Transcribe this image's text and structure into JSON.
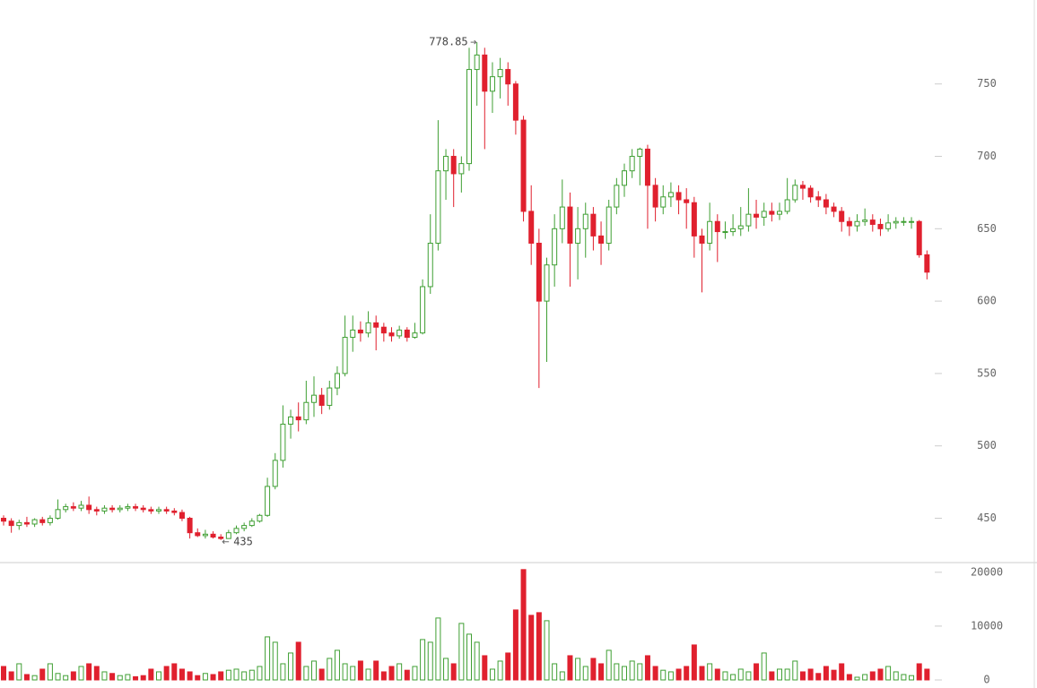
{
  "chart_data": {
    "type": "candlestick",
    "open": [
      450,
      448,
      445,
      447,
      446,
      449,
      447,
      450,
      456,
      458,
      457,
      459,
      456,
      455,
      457,
      456,
      457,
      458,
      457,
      456,
      455,
      456,
      455,
      454,
      450,
      440,
      438,
      439,
      437,
      436,
      440,
      443,
      445,
      448,
      452,
      472,
      490,
      515,
      520,
      518,
      530,
      535,
      528,
      540,
      550,
      575,
      580,
      578,
      585,
      582,
      578,
      576,
      580,
      575,
      578,
      610,
      640,
      690,
      700,
      688,
      695,
      760,
      770,
      745,
      755,
      760,
      750,
      725,
      662,
      640,
      600,
      625,
      650,
      665,
      640,
      650,
      660,
      645,
      640,
      665,
      680,
      690,
      700,
      705,
      680,
      665,
      672,
      675,
      670,
      668,
      645,
      640,
      655,
      648,
      648,
      650,
      652,
      660,
      658,
      662,
      660,
      662,
      670,
      680,
      678,
      672,
      670,
      665,
      662,
      655,
      652,
      655,
      656,
      653,
      650,
      654,
      655,
      655,
      655,
      632
    ],
    "high": [
      452,
      450,
      449,
      451,
      450,
      451,
      452,
      463,
      460,
      461,
      462,
      465,
      458,
      459,
      459,
      459,
      460,
      460,
      459,
      458,
      458,
      458,
      457,
      456,
      451,
      443,
      442,
      441,
      439,
      442,
      445,
      447,
      450,
      453,
      478,
      495,
      528,
      525,
      530,
      545,
      548,
      540,
      545,
      555,
      590,
      590,
      586,
      593,
      590,
      585,
      582,
      583,
      582,
      585,
      615,
      660,
      725,
      705,
      705,
      700,
      775,
      778.85,
      775,
      765,
      768,
      765,
      752,
      728,
      680,
      650,
      630,
      660,
      684,
      675,
      665,
      668,
      665,
      655,
      670,
      685,
      695,
      705,
      706,
      708,
      685,
      680,
      682,
      680,
      678,
      672,
      650,
      668,
      660,
      655,
      660,
      665,
      678,
      670,
      668,
      668,
      668,
      685,
      684,
      683,
      680,
      676,
      674,
      668,
      665,
      658,
      660,
      664,
      660,
      657,
      660,
      658,
      658,
      658,
      656,
      635
    ],
    "low": [
      445,
      440,
      442,
      444,
      444,
      445,
      445,
      449,
      454,
      455,
      455,
      453,
      452,
      453,
      454,
      454,
      455,
      455,
      454,
      453,
      453,
      453,
      452,
      448,
      436,
      437,
      436,
      436,
      435,
      436,
      439,
      441,
      444,
      447,
      451,
      470,
      485,
      505,
      510,
      515,
      520,
      522,
      525,
      535,
      548,
      565,
      572,
      575,
      566,
      572,
      572,
      574,
      572,
      574,
      577,
      605,
      635,
      670,
      665,
      675,
      690,
      735,
      705,
      730,
      740,
      735,
      715,
      655,
      625,
      540,
      558,
      610,
      640,
      610,
      615,
      630,
      635,
      625,
      635,
      660,
      672,
      685,
      680,
      650,
      655,
      660,
      665,
      660,
      650,
      630,
      606,
      635,
      627,
      643,
      645,
      645,
      648,
      650,
      652,
      655,
      656,
      660,
      668,
      670,
      668,
      665,
      660,
      658,
      648,
      645,
      648,
      652,
      648,
      645,
      648,
      650,
      652,
      650,
      630,
      615
    ],
    "close": [
      448,
      445,
      447,
      446,
      449,
      447,
      450,
      456,
      458,
      457,
      459,
      456,
      455,
      457,
      456,
      457,
      458,
      457,
      456,
      455,
      456,
      455,
      454,
      450,
      440,
      438,
      439,
      437,
      436,
      440,
      443,
      445,
      448,
      452,
      472,
      490,
      515,
      520,
      518,
      530,
      535,
      528,
      540,
      550,
      575,
      580,
      578,
      585,
      582,
      578,
      576,
      580,
      575,
      578,
      610,
      640,
      690,
      700,
      688,
      695,
      760,
      770,
      745,
      755,
      760,
      750,
      725,
      662,
      640,
      600,
      625,
      650,
      665,
      640,
      650,
      660,
      645,
      640,
      665,
      680,
      690,
      700,
      705,
      680,
      665,
      672,
      675,
      670,
      668,
      645,
      640,
      655,
      648,
      648,
      650,
      652,
      660,
      658,
      662,
      660,
      662,
      670,
      680,
      678,
      672,
      670,
      665,
      662,
      655,
      652,
      655,
      656,
      653,
      650,
      654,
      655,
      655,
      655,
      632,
      620
    ],
    "volume": [
      2500,
      1500,
      3000,
      1000,
      800,
      2000,
      3000,
      1200,
      800,
      1500,
      2500,
      3000,
      2500,
      1500,
      1200,
      800,
      1000,
      600,
      800,
      2000,
      1500,
      2500,
      3000,
      2000,
      1500,
      800,
      1200,
      1000,
      1500,
      1800,
      2000,
      1500,
      1800,
      2500,
      8000,
      7000,
      3000,
      5000,
      7000,
      2500,
      3500,
      2000,
      4000,
      5500,
      3000,
      2500,
      3500,
      2000,
      3500,
      1500,
      2500,
      3000,
      1800,
      2500,
      7500,
      7000,
      11500,
      4000,
      3000,
      10500,
      8500,
      7000,
      4500,
      2000,
      3500,
      5000,
      13000,
      20500,
      12000,
      12500,
      11000,
      3000,
      1500,
      4500,
      4000,
      2500,
      4000,
      3000,
      5500,
      3000,
      2500,
      3500,
      3000,
      4500,
      2500,
      1800,
      1500,
      2000,
      2500,
      6500,
      2500,
      3000,
      2000,
      1500,
      1000,
      2000,
      1500,
      3000,
      5000,
      1500,
      2000,
      2000,
      3500,
      1500,
      2000,
      1200,
      2500,
      1800,
      3000,
      1000,
      500,
      1000,
      1500,
      2000,
      2500,
      1500,
      1000,
      800,
      3000,
      2000
    ],
    "ylim": [
      420,
      808
    ],
    "yticks": [
      450,
      500,
      550,
      600,
      650,
      700,
      750
    ],
    "volume_ylim": [
      -1500,
      21800
    ],
    "volume_yticks": [
      0,
      10000,
      20000
    ],
    "up_color": "#3f9f33",
    "down_color": "#e0202e"
  }
}
